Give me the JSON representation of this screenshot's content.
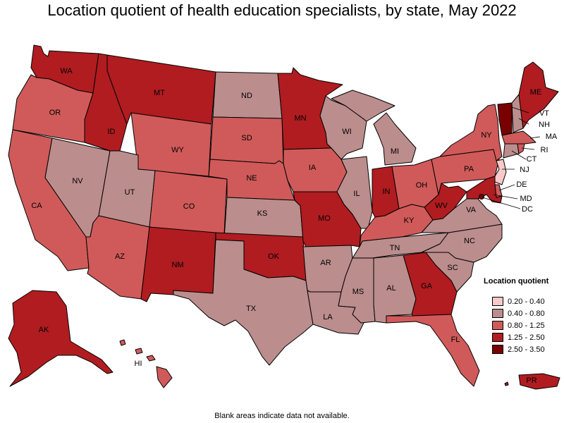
{
  "title": "Location quotient of health education specialists, by state, May 2022",
  "footnote": "Blank areas indicate data not available.",
  "legend": {
    "title": "Location quotient",
    "items": [
      {
        "label": "0.20 - 0.40",
        "color": "#f9c9c9"
      },
      {
        "label": "0.40 - 0.80",
        "color": "#bc8d8d"
      },
      {
        "label": "0.80 - 1.25",
        "color": "#d05a5a"
      },
      {
        "label": "1.25 - 2.50",
        "color": "#b01c20"
      },
      {
        "label": "2.50 - 3.50",
        "color": "#7a0000"
      }
    ]
  },
  "states": {
    "WA": {
      "label": "WA",
      "class": 3
    },
    "OR": {
      "label": "OR",
      "class": 2
    },
    "CA": {
      "label": "CA",
      "class": 2
    },
    "NV": {
      "label": "NV",
      "class": 1
    },
    "ID": {
      "label": "ID",
      "class": 3
    },
    "MT": {
      "label": "MT",
      "class": 3
    },
    "WY": {
      "label": "WY",
      "class": 2
    },
    "UT": {
      "label": "UT",
      "class": 1
    },
    "AZ": {
      "label": "AZ",
      "class": 2
    },
    "CO": {
      "label": "CO",
      "class": 2
    },
    "NM": {
      "label": "NM",
      "class": 3
    },
    "ND": {
      "label": "ND",
      "class": 1
    },
    "SD": {
      "label": "SD",
      "class": 2
    },
    "NE": {
      "label": "NE",
      "class": 2
    },
    "KS": {
      "label": "KS",
      "class": 1
    },
    "OK": {
      "label": "OK",
      "class": 3
    },
    "TX": {
      "label": "TX",
      "class": 1
    },
    "MN": {
      "label": "MN",
      "class": 3
    },
    "IA": {
      "label": "IA",
      "class": 2
    },
    "MO": {
      "label": "MO",
      "class": 3
    },
    "AR": {
      "label": "AR",
      "class": 1
    },
    "LA": {
      "label": "LA",
      "class": 1
    },
    "WI": {
      "label": "WI",
      "class": 1
    },
    "IL": {
      "label": "IL",
      "class": 1
    },
    "MI": {
      "label": "MI",
      "class": 1
    },
    "IN": {
      "label": "IN",
      "class": 3
    },
    "OH": {
      "label": "OH",
      "class": 2
    },
    "KY": {
      "label": "KY",
      "class": 2
    },
    "TN": {
      "label": "TN",
      "class": 1
    },
    "MS": {
      "label": "MS",
      "class": 1
    },
    "AL": {
      "label": "AL",
      "class": 1
    },
    "GA": {
      "label": "GA",
      "class": 3
    },
    "FL": {
      "label": "FL",
      "class": 2
    },
    "SC": {
      "label": "SC",
      "class": 1
    },
    "NC": {
      "label": "NC",
      "class": 1
    },
    "VA": {
      "label": "VA",
      "class": 1
    },
    "WV": {
      "label": "WV",
      "class": 3
    },
    "PA": {
      "label": "PA",
      "class": 2
    },
    "NY": {
      "label": "NY",
      "class": 2
    },
    "ME": {
      "label": "ME",
      "class": 3
    },
    "VT": {
      "label": "VT",
      "class": 4
    },
    "NH": {
      "label": "NH",
      "class": 1
    },
    "MA": {
      "label": "MA",
      "class": 2
    },
    "RI": {
      "label": "RI",
      "class": 2
    },
    "CT": {
      "label": "CT",
      "class": 1
    },
    "NJ": {
      "label": "NJ",
      "class": 0
    },
    "DE": {
      "label": "DE",
      "class": 2
    },
    "MD": {
      "label": "MD",
      "class": 3
    },
    "DC": {
      "label": "DC",
      "class": 4
    },
    "AK": {
      "label": "AK",
      "class": 3
    },
    "HI": {
      "label": "HI",
      "class": 2
    },
    "PR": {
      "label": "PR",
      "class": 3
    }
  }
}
